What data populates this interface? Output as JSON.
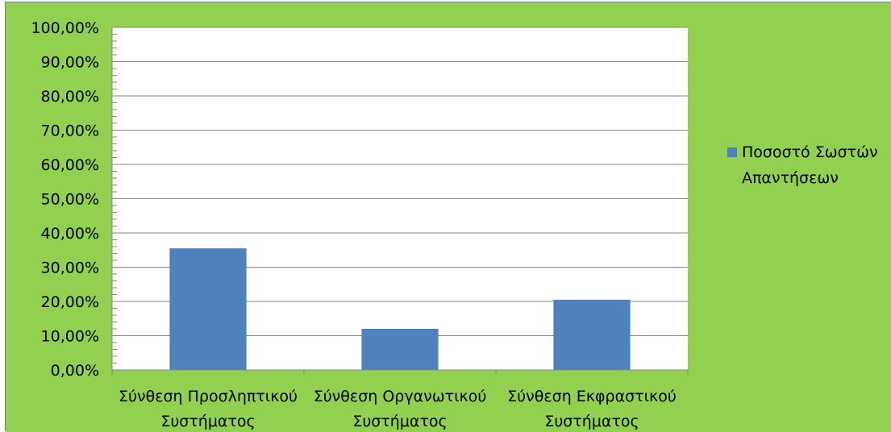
{
  "colors": {
    "background": "#92d050",
    "plot_area": "#ffffff",
    "bar": "#4f81bd",
    "gridline": "#868686",
    "axis": "#868686"
  },
  "chart_data": {
    "type": "bar",
    "categories": [
      [
        "Σύνθεση Προσληπτικού",
        "Συστήματος"
      ],
      [
        "Σύνθεση Οργανωτικού",
        "Συστήματος"
      ],
      [
        "Σύνθεση Εκφραστικού",
        "Συστήματος"
      ]
    ],
    "series": [
      {
        "name": [
          "Ποσοστό Σωστών",
          "Απαντήσεων"
        ],
        "values": [
          35.5,
          12.0,
          20.5
        ]
      }
    ],
    "ylim": [
      0,
      100
    ],
    "yticks": [
      0,
      10,
      20,
      30,
      40,
      50,
      60,
      70,
      80,
      90,
      100
    ],
    "ytick_labels": [
      "0,00%",
      "10,00%",
      "20,00%",
      "30,00%",
      "40,00%",
      "50,00%",
      "60,00%",
      "70,00%",
      "80,00%",
      "90,00%",
      "100,00%"
    ],
    "grid": true,
    "legend": "right"
  }
}
